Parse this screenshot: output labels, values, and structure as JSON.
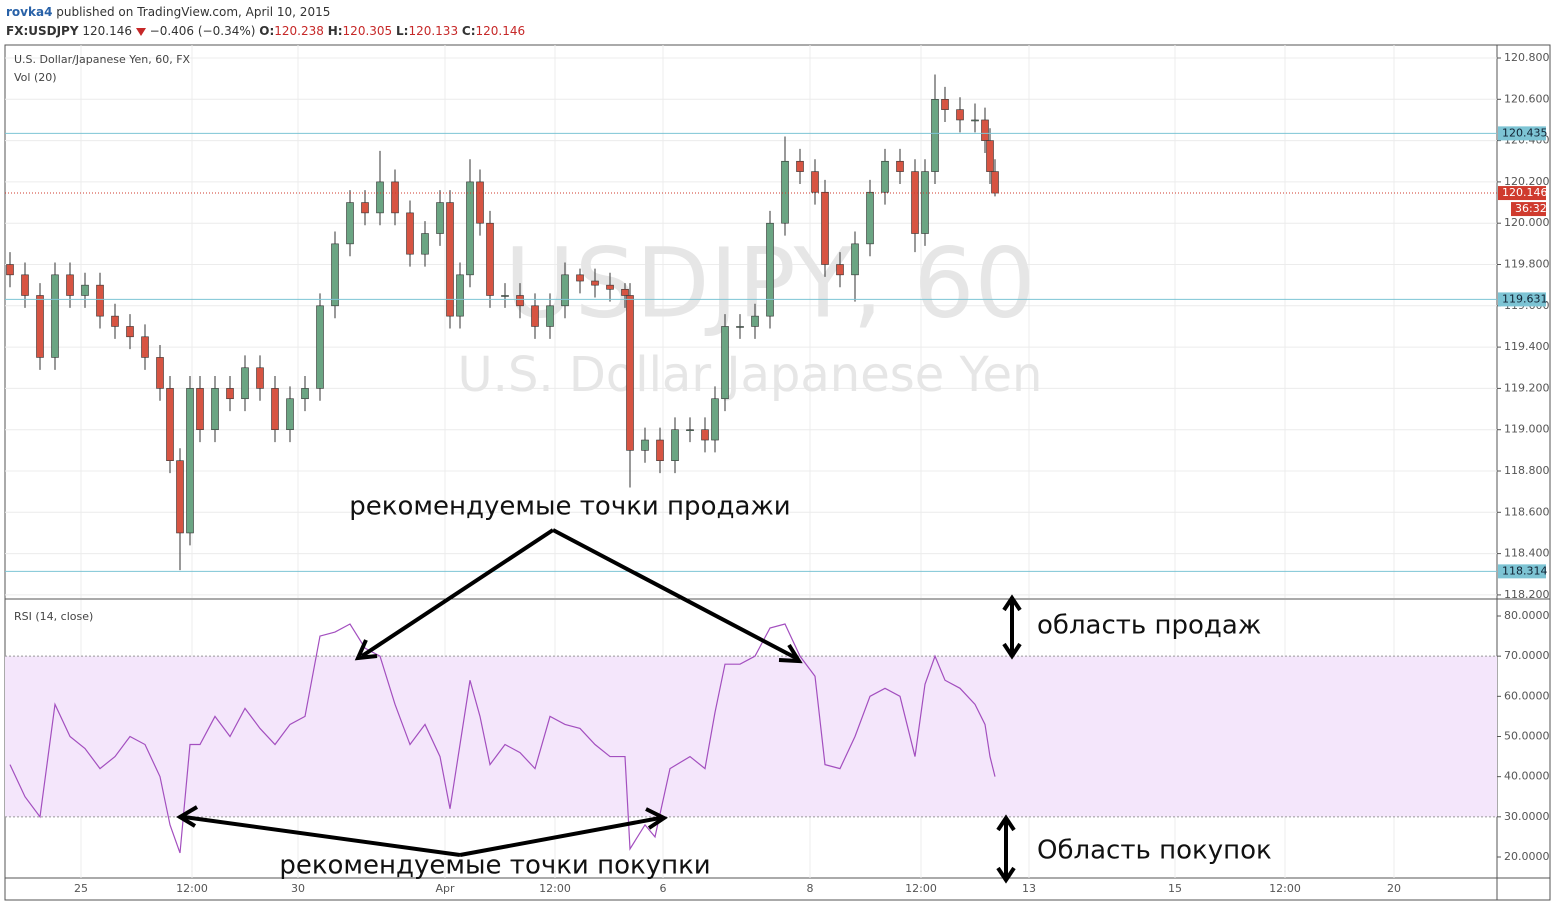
{
  "header": {
    "author": "rovka4",
    "published": "published on TradingView.com, April 10, 2015",
    "symbol": "FX:USDJPY",
    "last": "120.146",
    "change": "−0.406 (−0.34%)",
    "ohlc": [
      {
        "key": "O:",
        "value": "120.238"
      },
      {
        "key": "H:",
        "value": "120.305"
      },
      {
        "key": "L:",
        "value": "120.133"
      },
      {
        "key": "C:",
        "value": "120.146"
      }
    ]
  },
  "chart_data": [
    {
      "type": "candlestick",
      "title": "U.S. Dollar/Japanese Yen, 60, FX",
      "subtitle": "Vol (20)",
      "watermark": [
        "USDJPY, 60",
        "U.S. Dollar Japanese Yen"
      ],
      "up_color": "#6ba583",
      "down_color": "#d75442",
      "grid": true,
      "xlim": [
        0,
        1492
      ],
      "ylim": [
        118.185,
        120.863
      ],
      "xticks": [
        {
          "value": 76,
          "label": "25"
        },
        {
          "value": 187,
          "label": "12:00"
        },
        {
          "value": 293,
          "label": "30"
        },
        {
          "value": 440,
          "label": "Apr"
        },
        {
          "value": 550,
          "label": "12:00"
        },
        {
          "value": 658,
          "label": "6"
        },
        {
          "value": 805,
          "label": "8"
        },
        {
          "value": 916,
          "label": "12:00"
        },
        {
          "value": 1024,
          "label": "13"
        },
        {
          "value": 1170,
          "label": "15"
        },
        {
          "value": 1280,
          "label": "12:00"
        },
        {
          "value": 1389,
          "label": "20"
        }
      ],
      "yticks": [
        {
          "value": 118.2,
          "label": "118.200"
        },
        {
          "value": 118.4,
          "label": "118.400"
        },
        {
          "value": 118.6,
          "label": "118.600"
        },
        {
          "value": 118.8,
          "label": "118.800"
        },
        {
          "value": 119,
          "label": "119.000"
        },
        {
          "value": 119.2,
          "label": "119.200"
        },
        {
          "value": 119.4,
          "label": "119.400"
        },
        {
          "value": 119.6,
          "label": "119.600"
        },
        {
          "value": 119.8,
          "label": "119.800"
        },
        {
          "value": 120,
          "label": "120.000"
        },
        {
          "value": 120.2,
          "label": "120.200"
        },
        {
          "value": 120.4,
          "label": "120.400"
        },
        {
          "value": 120.6,
          "label": "120.600"
        },
        {
          "value": 120.8,
          "label": "120.800"
        }
      ],
      "hlines": [
        {
          "value": 120.435,
          "label": "120.435",
          "color": "#7dc4d4"
        },
        {
          "value": 119.631,
          "label": "119.631",
          "color": "#7dc4d4"
        },
        {
          "value": 118.314,
          "label": "118.314",
          "color": "#7dc4d4"
        }
      ],
      "last_price": {
        "value": 120.146,
        "label": "120.146",
        "countdown": "36:32",
        "color": "#cf3b2e"
      },
      "x": [
        5,
        20,
        35,
        50,
        65,
        80,
        95,
        110,
        125,
        140,
        155,
        165,
        175,
        185,
        195,
        210,
        225,
        240,
        255,
        270,
        285,
        300,
        315,
        330,
        345,
        360,
        375,
        390,
        405,
        420,
        435,
        445,
        455,
        465,
        475,
        485,
        500,
        515,
        530,
        545,
        560,
        575,
        590,
        605,
        620,
        625,
        640,
        655,
        670,
        685,
        700,
        710,
        720,
        735,
        750,
        765,
        780,
        795,
        810,
        820,
        835,
        850,
        865,
        880,
        895,
        910,
        920,
        930,
        940,
        955,
        970,
        980,
        985,
        990
      ],
      "open": [
        119.8,
        119.75,
        119.65,
        119.35,
        119.75,
        119.65,
        119.7,
        119.55,
        119.5,
        119.45,
        119.35,
        119.2,
        118.85,
        118.5,
        119.2,
        119.0,
        119.2,
        119.15,
        119.3,
        119.2,
        119.0,
        119.15,
        119.2,
        119.6,
        119.9,
        120.1,
        120.05,
        120.2,
        120.05,
        119.85,
        119.95,
        120.1,
        119.55,
        119.75,
        120.2,
        120.0,
        119.65,
        119.65,
        119.6,
        119.5,
        119.6,
        119.75,
        119.72,
        119.7,
        119.68,
        119.65,
        118.9,
        118.95,
        118.85,
        119.0,
        119.0,
        118.95,
        119.15,
        119.5,
        119.5,
        119.55,
        120.0,
        120.3,
        120.25,
        120.15,
        119.8,
        119.75,
        119.9,
        120.15,
        120.3,
        120.25,
        119.95,
        120.25,
        120.6,
        120.55,
        120.5,
        120.5,
        120.4,
        120.25
      ],
      "high": [
        119.86,
        119.81,
        119.71,
        119.81,
        119.81,
        119.76,
        119.76,
        119.61,
        119.56,
        119.51,
        119.41,
        119.26,
        118.91,
        119.26,
        119.26,
        119.26,
        119.26,
        119.36,
        119.36,
        119.26,
        119.21,
        119.26,
        119.66,
        119.96,
        120.16,
        120.16,
        120.35,
        120.26,
        120.11,
        120.01,
        120.16,
        120.16,
        119.81,
        120.31,
        120.26,
        120.06,
        119.71,
        119.71,
        119.66,
        119.66,
        119.81,
        119.78,
        119.78,
        119.76,
        119.71,
        119.71,
        119.01,
        119.01,
        119.06,
        119.06,
        119.06,
        119.21,
        119.56,
        119.56,
        119.61,
        120.06,
        120.42,
        120.36,
        120.31,
        120.21,
        119.86,
        119.96,
        120.21,
        120.36,
        120.36,
        120.31,
        120.31,
        120.72,
        120.66,
        120.61,
        120.58,
        120.56,
        120.46,
        120.31
      ],
      "low": [
        119.69,
        119.59,
        119.29,
        119.29,
        119.59,
        119.59,
        119.49,
        119.44,
        119.39,
        119.29,
        119.14,
        118.79,
        118.32,
        118.44,
        118.94,
        118.94,
        119.09,
        119.09,
        119.14,
        118.94,
        118.94,
        119.09,
        119.14,
        119.54,
        119.84,
        119.99,
        119.99,
        119.99,
        119.79,
        119.79,
        119.89,
        119.49,
        119.49,
        119.69,
        119.94,
        119.59,
        119.59,
        119.54,
        119.44,
        119.44,
        119.54,
        119.66,
        119.64,
        119.62,
        119.59,
        118.72,
        118.84,
        118.79,
        118.79,
        118.94,
        118.89,
        118.89,
        119.09,
        119.44,
        119.44,
        119.49,
        119.94,
        120.19,
        120.09,
        119.74,
        119.69,
        119.62,
        119.84,
        120.09,
        120.19,
        119.86,
        119.89,
        120.19,
        120.49,
        120.44,
        120.44,
        120.34,
        120.19,
        120.13
      ],
      "close": [
        119.75,
        119.65,
        119.35,
        119.75,
        119.65,
        119.7,
        119.55,
        119.5,
        119.45,
        119.35,
        119.2,
        118.85,
        118.5,
        119.2,
        119.0,
        119.2,
        119.15,
        119.3,
        119.2,
        119.0,
        119.15,
        119.2,
        119.6,
        119.9,
        120.1,
        120.05,
        120.2,
        120.05,
        119.85,
        119.95,
        120.1,
        119.55,
        119.75,
        120.2,
        120.0,
        119.65,
        119.65,
        119.6,
        119.5,
        119.6,
        119.75,
        119.72,
        119.7,
        119.68,
        119.65,
        118.9,
        118.95,
        118.85,
        119.0,
        119.0,
        118.95,
        119.15,
        119.5,
        119.5,
        119.55,
        120.0,
        120.3,
        120.25,
        120.15,
        119.8,
        119.75,
        119.9,
        120.15,
        120.3,
        120.25,
        119.95,
        120.25,
        120.6,
        120.55,
        120.5,
        120.5,
        120.4,
        120.25,
        120.146
      ]
    },
    {
      "type": "line",
      "title": "RSI (14, close)",
      "color": "#a34fbf",
      "band": [
        30,
        70
      ],
      "band_color": "#f4e6fb",
      "xlim": [
        0,
        1492
      ],
      "ylim": [
        14.77,
        83.98
      ],
      "yticks": [
        {
          "value": 20,
          "label": "20.0000"
        },
        {
          "value": 30,
          "label": "30.0000"
        },
        {
          "value": 40,
          "label": "40.0000"
        },
        {
          "value": 50,
          "label": "50.0000"
        },
        {
          "value": 60,
          "label": "60.0000"
        },
        {
          "value": 70,
          "label": "70.0000"
        },
        {
          "value": 80,
          "label": "80.0000"
        }
      ],
      "x": [
        5,
        20,
        35,
        50,
        65,
        80,
        95,
        110,
        125,
        140,
        155,
        165,
        175,
        185,
        195,
        210,
        225,
        240,
        255,
        270,
        285,
        300,
        315,
        330,
        345,
        360,
        375,
        390,
        405,
        420,
        435,
        445,
        455,
        465,
        475,
        485,
        500,
        515,
        530,
        545,
        560,
        575,
        590,
        605,
        620,
        625,
        640,
        650,
        665,
        685,
        700,
        710,
        720,
        735,
        750,
        765,
        780,
        795,
        810,
        820,
        835,
        850,
        865,
        880,
        895,
        910,
        920,
        930,
        940,
        955,
        970,
        980,
        985,
        990
      ],
      "values": [
        43,
        35,
        30,
        58,
        50,
        47,
        42,
        45,
        50,
        48,
        40,
        28,
        21,
        48,
        48,
        55,
        50,
        57,
        52,
        48,
        53,
        55,
        75,
        76,
        78,
        72,
        70,
        58,
        48,
        53,
        45,
        32,
        48,
        64,
        55,
        43,
        48,
        46,
        42,
        55,
        53,
        52,
        48,
        45,
        45,
        22,
        28,
        25,
        42,
        45,
        42,
        56,
        68,
        68,
        70,
        77,
        78,
        70,
        65,
        43,
        42,
        50,
        60,
        62,
        60,
        45,
        63,
        70,
        64,
        62,
        58,
        53,
        45,
        40
      ]
    }
  ],
  "annotations": {
    "sell_points": "рекомендуемые точки продажи",
    "buy_points": "рекомендуемые точки покупки",
    "sell_zone": "область продаж",
    "buy_zone": "Область покупок"
  }
}
